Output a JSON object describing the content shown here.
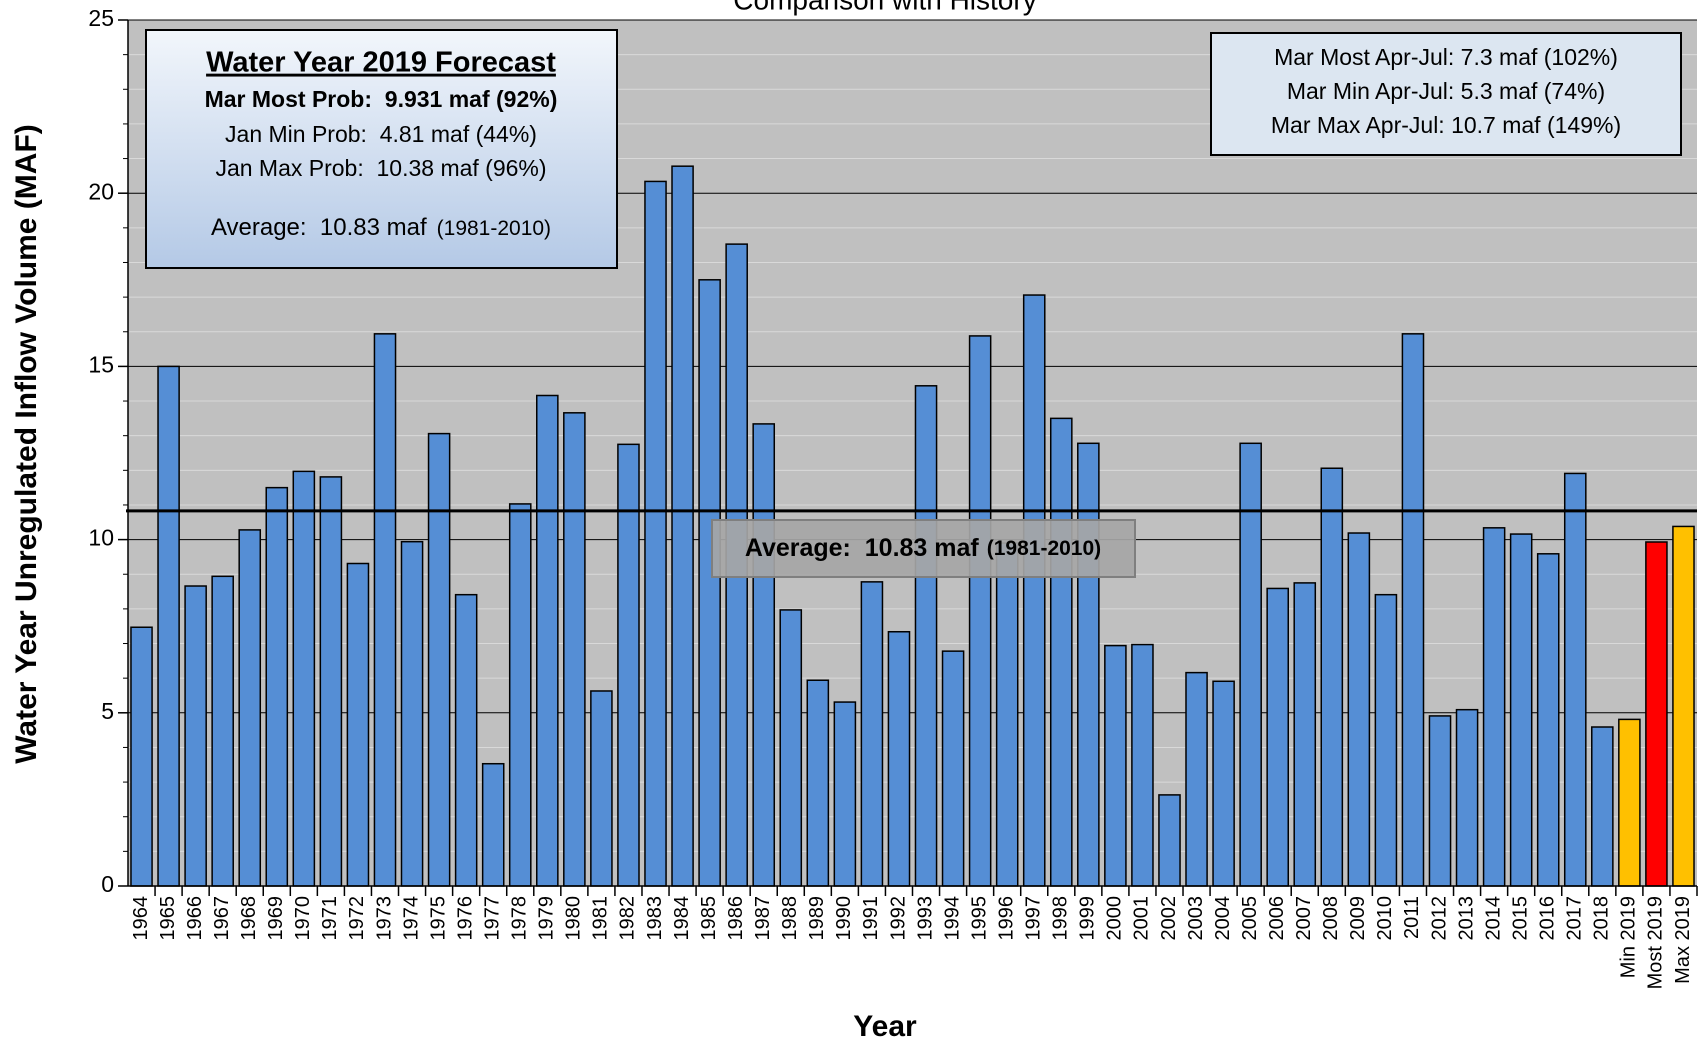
{
  "chart_data": {
    "type": "bar",
    "title": "Comparison with History",
    "x_label": "Year",
    "y_label": "Water Year Unregulated Inflow Volume (MAF)",
    "categories": [
      "1964",
      "1965",
      "1966",
      "1967",
      "1968",
      "1969",
      "1970",
      "1971",
      "1972",
      "1973",
      "1974",
      "1975",
      "1976",
      "1977",
      "1978",
      "1979",
      "1980",
      "1981",
      "1982",
      "1983",
      "1984",
      "1985",
      "1986",
      "1987",
      "1988",
      "1989",
      "1990",
      "1991",
      "1992",
      "1993",
      "1994",
      "1995",
      "1996",
      "1997",
      "1998",
      "1999",
      "2000",
      "2001",
      "2002",
      "2003",
      "2004",
      "2005",
      "2006",
      "2007",
      "2008",
      "2009",
      "2010",
      "2011",
      "2012",
      "2013",
      "2014",
      "2015",
      "2016",
      "2017",
      "2018",
      "Min 2019",
      "Most 2019",
      "Max 2019"
    ],
    "values": [
      7.47,
      15.0,
      8.66,
      8.94,
      10.28,
      11.5,
      11.97,
      11.81,
      9.31,
      15.94,
      9.94,
      13.06,
      8.41,
      3.53,
      11.03,
      14.16,
      13.66,
      5.63,
      12.75,
      20.34,
      20.78,
      17.5,
      18.53,
      13.34,
      7.97,
      5.94,
      5.31,
      8.78,
      7.34,
      14.44,
      6.78,
      15.88,
      9.9,
      17.06,
      13.5,
      12.78,
      6.94,
      6.97,
      2.63,
      6.16,
      5.91,
      12.78,
      8.59,
      8.75,
      12.06,
      10.19,
      8.41,
      15.94,
      4.91,
      5.09,
      10.34,
      10.16,
      9.59,
      11.91,
      4.59,
      4.81,
      9.931,
      10.38
    ],
    "colors": [
      "#558ed5",
      "#558ed5",
      "#558ed5",
      "#558ed5",
      "#558ed5",
      "#558ed5",
      "#558ed5",
      "#558ed5",
      "#558ed5",
      "#558ed5",
      "#558ed5",
      "#558ed5",
      "#558ed5",
      "#558ed5",
      "#558ed5",
      "#558ed5",
      "#558ed5",
      "#558ed5",
      "#558ed5",
      "#558ed5",
      "#558ed5",
      "#558ed5",
      "#558ed5",
      "#558ed5",
      "#558ed5",
      "#558ed5",
      "#558ed5",
      "#558ed5",
      "#558ed5",
      "#558ed5",
      "#558ed5",
      "#558ed5",
      "#558ed5",
      "#558ed5",
      "#558ed5",
      "#558ed5",
      "#558ed5",
      "#558ed5",
      "#558ed5",
      "#558ed5",
      "#558ed5",
      "#558ed5",
      "#558ed5",
      "#558ed5",
      "#558ed5",
      "#558ed5",
      "#558ed5",
      "#558ed5",
      "#558ed5",
      "#558ed5",
      "#558ed5",
      "#558ed5",
      "#558ed5",
      "#558ed5",
      "#558ed5",
      "#ffc000",
      "#ff0000",
      "#ffc000"
    ],
    "ylim": [
      0,
      25
    ],
    "yticks": [
      0,
      5,
      10,
      15,
      20,
      25
    ],
    "grid": true,
    "minor_divisions": 5,
    "average": {
      "value": 10.83,
      "label": "Average:  10.83 maf",
      "period": "(1981-2010)"
    },
    "forecast_box": {
      "title": "Water Year 2019 Forecast",
      "lines": [
        "Mar Most Prob:  9.931 maf (92%)",
        "Jan Min Prob:  4.81 maf (44%)",
        "Jan Max Prob:  10.38 maf (96%)"
      ],
      "average": "Average:  10.83 maf",
      "period": "(1981-2010)"
    },
    "apr_jul_box": [
      "Mar Most Apr-Jul: 7.3 maf (102%)",
      "Mar Min Apr-Jul: 5.3 maf (74%)",
      "Mar Max Apr-Jul: 10.7 maf (149%)"
    ]
  }
}
